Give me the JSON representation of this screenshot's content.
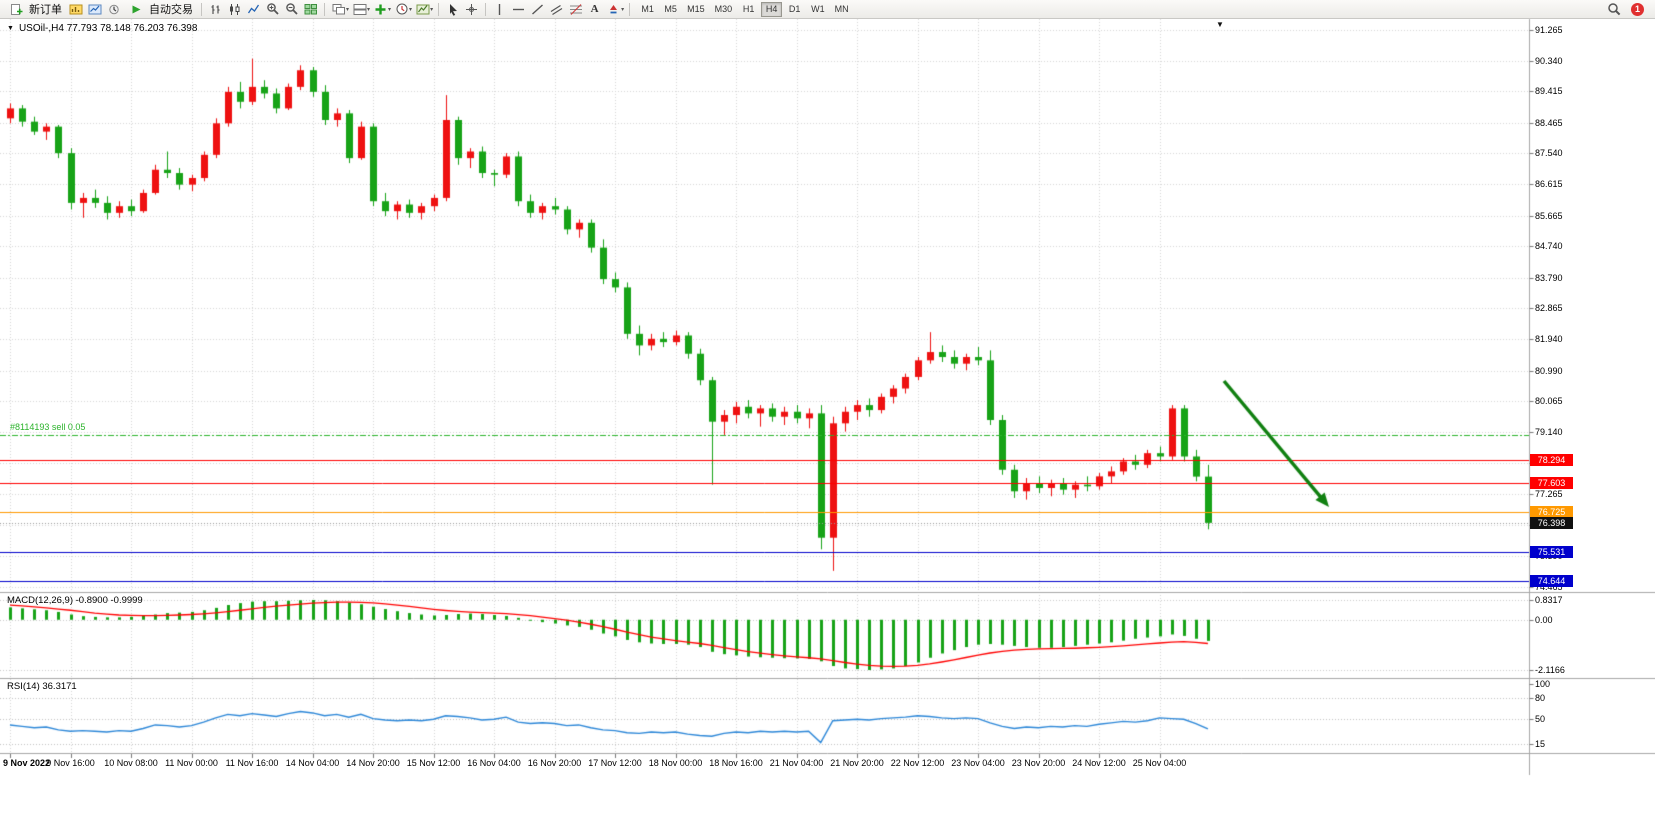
{
  "toolbar": {
    "new_order_label": "新订单",
    "autotrade_label": "自动交易",
    "timeframes": [
      "M1",
      "M5",
      "M15",
      "M30",
      "H1",
      "H4",
      "D1",
      "W1",
      "MN"
    ],
    "active_timeframe": "H4",
    "notification_count": "1"
  },
  "chart": {
    "title": "USOil-,H4 77.793 78.148 76.203 76.398",
    "scroll_marker": "▼",
    "order_label": "#8114193 sell 0.05",
    "order_line_price": 79.06,
    "current_price": "76.398",
    "colors": {
      "up": "#ee1111",
      "down": "#17a317",
      "grid": "#d6d6d6",
      "order_line": "#2bb32b",
      "bid_line": "#999999",
      "red_level": "#ff0000",
      "orange_level": "#ff9900",
      "blue_level": "#0000cc",
      "arrow": "#118011",
      "macd_hist": "#17a317",
      "macd_signal": "#ff0000",
      "rsi_line": "#2c87d8"
    },
    "y_axis_labels": [
      "91.265",
      "90.340",
      "89.415",
      "88.465",
      "87.540",
      "86.615",
      "85.665",
      "84.740",
      "83.790",
      "82.865",
      "81.940",
      "80.990",
      "80.065",
      "79.140",
      "78.215",
      "77.265",
      "76.340",
      "75.390",
      "74.465"
    ],
    "price_tags": [
      {
        "value": "78.294",
        "bg": "#ff0000"
      },
      {
        "value": "77.603",
        "bg": "#ff0000"
      },
      {
        "value": "76.725",
        "bg": "#ff9900"
      },
      {
        "value": "76.398",
        "bg": "#101010"
      },
      {
        "value": "75.531",
        "bg": "#0000cc"
      },
      {
        "value": "74.644",
        "bg": "#0000cc"
      }
    ],
    "hlines": [
      {
        "price": 79.06,
        "color": "#2bb32b",
        "style": "dash"
      },
      {
        "price": 78.294,
        "color": "#ff0000",
        "style": "solid"
      },
      {
        "price": 77.603,
        "color": "#ff0000",
        "style": "solid"
      },
      {
        "price": 76.725,
        "color": "#ff9900",
        "style": "solid"
      },
      {
        "price": 76.398,
        "color": "#999999",
        "style": "dot"
      },
      {
        "price": 75.531,
        "color": "#0000cc",
        "style": "solid"
      },
      {
        "price": 74.644,
        "color": "#0000cc",
        "style": "solid"
      }
    ],
    "arrow_annotation": {
      "from": [
        1224,
        381
      ],
      "to": [
        1329,
        507
      ]
    },
    "time_labels": [
      "9 Nov 2022",
      "9 Nov 16:00",
      "10 Nov 08:00",
      "11 Nov 00:00",
      "11 Nov 16:00",
      "14 Nov 04:00",
      "14 Nov 20:00",
      "15 Nov 12:00",
      "16 Nov 04:00",
      "16 Nov 20:00",
      "17 Nov 12:00",
      "18 Nov 00:00",
      "18 Nov 16:00",
      "21 Nov 04:00",
      "21 Nov 20:00",
      "22 Nov 12:00",
      "23 Nov 04:00",
      "23 Nov 20:00",
      "24 Nov 12:00",
      "25 Nov 04:00"
    ],
    "chart_data": {
      "type": "candlestick",
      "symbol": "USOil-",
      "timeframe": "H4",
      "ohlc_format": [
        "open",
        "high",
        "low",
        "close"
      ],
      "candles": [
        [
          88.6,
          89.05,
          88.45,
          88.9
        ],
        [
          88.9,
          89.0,
          88.35,
          88.5
        ],
        [
          88.5,
          88.65,
          88.1,
          88.2
        ],
        [
          88.2,
          88.45,
          87.95,
          88.35
        ],
        [
          88.35,
          88.4,
          87.4,
          87.55
        ],
        [
          87.55,
          87.7,
          85.85,
          86.05
        ],
        [
          86.05,
          86.35,
          85.6,
          86.2
        ],
        [
          86.2,
          86.45,
          85.9,
          86.05
        ],
        [
          86.05,
          86.25,
          85.55,
          85.75
        ],
        [
          85.75,
          86.1,
          85.6,
          85.95
        ],
        [
          85.95,
          86.15,
          85.65,
          85.8
        ],
        [
          85.8,
          86.45,
          85.75,
          86.35
        ],
        [
          86.35,
          87.2,
          86.3,
          87.05
        ],
        [
          87.05,
          87.6,
          86.8,
          86.95
        ],
        [
          86.95,
          87.1,
          86.45,
          86.6
        ],
        [
          86.6,
          86.9,
          86.4,
          86.8
        ],
        [
          86.8,
          87.6,
          86.7,
          87.5
        ],
        [
          87.5,
          88.6,
          87.4,
          88.45
        ],
        [
          88.45,
          89.55,
          88.35,
          89.4
        ],
        [
          89.4,
          89.7,
          88.9,
          89.1
        ],
        [
          89.1,
          90.4,
          89.0,
          89.55
        ],
        [
          89.55,
          89.75,
          89.2,
          89.35
        ],
        [
          89.35,
          89.5,
          88.75,
          88.9
        ],
        [
          88.9,
          89.65,
          88.85,
          89.55
        ],
        [
          89.55,
          90.2,
          89.45,
          90.05
        ],
        [
          90.05,
          90.15,
          89.25,
          89.4
        ],
        [
          89.4,
          89.6,
          88.4,
          88.55
        ],
        [
          88.55,
          88.9,
          88.35,
          88.75
        ],
        [
          88.75,
          88.85,
          87.25,
          87.4
        ],
        [
          87.4,
          88.5,
          87.35,
          88.35
        ],
        [
          88.35,
          88.45,
          85.95,
          86.1
        ],
        [
          86.1,
          86.35,
          85.65,
          85.8
        ],
        [
          85.8,
          86.1,
          85.55,
          86.0
        ],
        [
          86.0,
          86.15,
          85.6,
          85.75
        ],
        [
          85.75,
          86.05,
          85.55,
          85.95
        ],
        [
          85.95,
          86.3,
          85.8,
          86.2
        ],
        [
          86.2,
          89.3,
          86.1,
          88.55
        ],
        [
          88.55,
          88.65,
          87.2,
          87.4
        ],
        [
          87.4,
          87.7,
          87.1,
          87.6
        ],
        [
          87.6,
          87.75,
          86.8,
          86.95
        ],
        [
          86.95,
          87.05,
          86.55,
          86.9
        ],
        [
          86.9,
          87.55,
          86.8,
          87.45
        ],
        [
          87.45,
          87.6,
          85.95,
          86.1
        ],
        [
          86.1,
          86.3,
          85.6,
          85.75
        ],
        [
          85.75,
          86.05,
          85.55,
          85.95
        ],
        [
          85.95,
          86.2,
          85.7,
          85.85
        ],
        [
          85.85,
          85.95,
          85.1,
          85.25
        ],
        [
          85.25,
          85.55,
          85.0,
          85.45
        ],
        [
          85.45,
          85.55,
          84.55,
          84.7
        ],
        [
          84.7,
          84.95,
          83.6,
          83.75
        ],
        [
          83.75,
          83.95,
          83.35,
          83.5
        ],
        [
          83.5,
          83.65,
          81.95,
          82.1
        ],
        [
          82.1,
          82.35,
          81.45,
          81.75
        ],
        [
          81.75,
          82.1,
          81.6,
          81.95
        ],
        [
          81.95,
          82.15,
          81.7,
          81.85
        ],
        [
          81.85,
          82.2,
          81.75,
          82.05
        ],
        [
          82.05,
          82.15,
          81.35,
          81.5
        ],
        [
          81.5,
          81.65,
          80.55,
          80.7
        ],
        [
          80.7,
          80.8,
          77.55,
          79.45
        ],
        [
          79.45,
          79.8,
          79.05,
          79.65
        ],
        [
          79.65,
          80.05,
          79.4,
          79.9
        ],
        [
          79.9,
          80.1,
          79.55,
          79.7
        ],
        [
          79.7,
          79.95,
          79.3,
          79.85
        ],
        [
          79.85,
          80.0,
          79.45,
          79.6
        ],
        [
          79.6,
          79.9,
          79.35,
          79.75
        ],
        [
          79.75,
          79.95,
          79.4,
          79.55
        ],
        [
          79.55,
          79.85,
          79.25,
          79.7
        ],
        [
          79.7,
          79.95,
          75.6,
          75.95
        ],
        [
          75.95,
          79.6,
          74.95,
          79.4
        ],
        [
          79.4,
          79.9,
          79.15,
          79.75
        ],
        [
          79.75,
          80.1,
          79.5,
          79.95
        ],
        [
          79.95,
          80.15,
          79.6,
          79.8
        ],
        [
          79.8,
          80.3,
          79.7,
          80.2
        ],
        [
          80.2,
          80.55,
          80.0,
          80.45
        ],
        [
          80.45,
          80.9,
          80.3,
          80.8
        ],
        [
          80.8,
          81.4,
          80.7,
          81.3
        ],
        [
          81.3,
          82.15,
          81.2,
          81.55
        ],
        [
          81.55,
          81.75,
          81.25,
          81.4
        ],
        [
          81.4,
          81.6,
          81.05,
          81.2
        ],
        [
          81.2,
          81.5,
          81.0,
          81.4
        ],
        [
          81.4,
          81.7,
          81.15,
          81.3
        ],
        [
          81.3,
          81.6,
          79.35,
          79.5
        ],
        [
          79.5,
          79.65,
          77.85,
          78.0
        ],
        [
          78.0,
          78.15,
          77.15,
          77.35
        ],
        [
          77.35,
          77.75,
          77.1,
          77.6
        ],
        [
          77.6,
          77.8,
          77.3,
          77.45
        ],
        [
          77.45,
          77.7,
          77.2,
          77.6
        ],
        [
          77.6,
          77.75,
          77.25,
          77.4
        ],
        [
          77.4,
          77.65,
          77.15,
          77.55
        ],
        [
          77.55,
          77.8,
          77.35,
          77.5
        ],
        [
          77.5,
          77.9,
          77.4,
          77.8
        ],
        [
          77.8,
          78.1,
          77.6,
          77.95
        ],
        [
          77.95,
          78.35,
          77.85,
          78.25
        ],
        [
          78.25,
          78.45,
          78.0,
          78.15
        ],
        [
          78.15,
          78.6,
          78.05,
          78.5
        ],
        [
          78.5,
          78.7,
          78.25,
          78.4
        ],
        [
          78.4,
          79.95,
          78.3,
          79.85
        ],
        [
          79.85,
          79.95,
          78.25,
          78.4
        ],
        [
          78.4,
          78.6,
          77.65,
          77.793
        ],
        [
          77.793,
          78.148,
          76.203,
          76.398
        ]
      ]
    }
  },
  "macd": {
    "label": "MACD(12,26,9) -0.8900 -0.9999",
    "axis_labels": [
      "0.8317",
      "0.00",
      "-2.1166"
    ],
    "axis_values": [
      0.8317,
      0,
      -2.1166
    ],
    "histogram": [
      0.52,
      0.48,
      0.44,
      0.4,
      0.33,
      0.22,
      0.15,
      0.12,
      0.1,
      0.1,
      0.12,
      0.16,
      0.22,
      0.28,
      0.3,
      0.33,
      0.4,
      0.5,
      0.62,
      0.7,
      0.76,
      0.78,
      0.78,
      0.8,
      0.82,
      0.8317,
      0.82,
      0.78,
      0.72,
      0.65,
      0.55,
      0.45,
      0.36,
      0.28,
      0.22,
      0.18,
      0.2,
      0.24,
      0.26,
      0.24,
      0.2,
      0.16,
      0.08,
      -0.02,
      -0.1,
      -0.16,
      -0.24,
      -0.3,
      -0.42,
      -0.58,
      -0.7,
      -0.85,
      -0.95,
      -1.0,
      -1.02,
      -1.02,
      -1.05,
      -1.15,
      -1.35,
      -1.45,
      -1.5,
      -1.55,
      -1.58,
      -1.6,
      -1.62,
      -1.63,
      -1.65,
      -1.75,
      -1.95,
      -2.05,
      -2.08,
      -2.1166,
      -2.09,
      -2.05,
      -1.95,
      -1.8,
      -1.6,
      -1.42,
      -1.28,
      -1.15,
      -1.05,
      -1.02,
      -1.05,
      -1.1,
      -1.15,
      -1.18,
      -1.18,
      -1.15,
      -1.1,
      -1.05,
      -1.0,
      -0.95,
      -0.88,
      -0.8,
      -0.75,
      -0.7,
      -0.62,
      -0.68,
      -0.8,
      -0.89
    ],
    "signal": [
      0.62,
      0.58,
      0.54,
      0.5,
      0.45,
      0.4,
      0.34,
      0.28,
      0.24,
      0.2,
      0.18,
      0.17,
      0.17,
      0.18,
      0.2,
      0.22,
      0.25,
      0.29,
      0.34,
      0.4,
      0.46,
      0.52,
      0.57,
      0.62,
      0.66,
      0.7,
      0.72,
      0.74,
      0.74,
      0.73,
      0.71,
      0.67,
      0.62,
      0.56,
      0.5,
      0.44,
      0.39,
      0.35,
      0.32,
      0.3,
      0.28,
      0.26,
      0.22,
      0.17,
      0.11,
      0.05,
      -0.02,
      -0.1,
      -0.19,
      -0.29,
      -0.4,
      -0.52,
      -0.63,
      -0.73,
      -0.81,
      -0.88,
      -0.94,
      -1.0,
      -1.08,
      -1.17,
      -1.26,
      -1.34,
      -1.41,
      -1.47,
      -1.52,
      -1.56,
      -1.6,
      -1.65,
      -1.72,
      -1.8,
      -1.87,
      -1.92,
      -1.95,
      -1.96,
      -1.95,
      -1.92,
      -1.86,
      -1.78,
      -1.69,
      -1.59,
      -1.49,
      -1.4,
      -1.33,
      -1.28,
      -1.25,
      -1.23,
      -1.22,
      -1.21,
      -1.2,
      -1.18,
      -1.16,
      -1.13,
      -1.1,
      -1.06,
      -1.02,
      -0.98,
      -0.94,
      -0.92,
      -0.95,
      -0.9999
    ]
  },
  "rsi": {
    "label": "RSI(14) 36.3171",
    "axis_labels": [
      "100",
      "80",
      "50",
      "15"
    ],
    "axis_values": [
      100,
      80,
      50,
      15
    ],
    "level_lines": [
      80,
      50,
      15
    ],
    "values": [
      42,
      40,
      38,
      39,
      35,
      33,
      34,
      33,
      32,
      34,
      33,
      37,
      42,
      41,
      39,
      41,
      46,
      52,
      57,
      55,
      58,
      56,
      54,
      58,
      61,
      59,
      55,
      57,
      53,
      57,
      51,
      49,
      48,
      49,
      48,
      50,
      55,
      54,
      52,
      49,
      50,
      53,
      46,
      44,
      45,
      44,
      41,
      42,
      38,
      35,
      34,
      31,
      30,
      32,
      31,
      32,
      29,
      27,
      26,
      30,
      32,
      31,
      33,
      32,
      33,
      32,
      33,
      17,
      48,
      49,
      50,
      49,
      51,
      52,
      53,
      55,
      54,
      52,
      51,
      52,
      51,
      45,
      40,
      37,
      39,
      38,
      40,
      39,
      41,
      40,
      43,
      45,
      47,
      46,
      48,
      52,
      51,
      50,
      44,
      36.3171
    ]
  }
}
